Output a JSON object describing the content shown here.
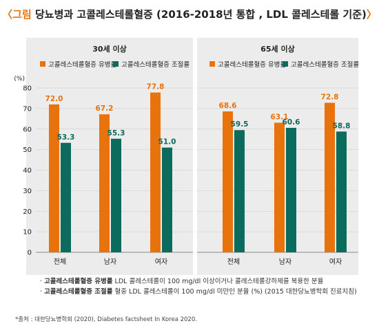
{
  "title": {
    "bracket_open": "〈",
    "tag": "그림",
    "text": " 당뇨병과 고콜레스테롤혈증 (2016-2018년 통합 , LDL 콜레스테롤 기준)",
    "bracket_close": "〉"
  },
  "colors": {
    "orange": "#e8720c",
    "green": "#0b6b5c",
    "panel": "#ececec"
  },
  "y_unit": "(%)",
  "legend": [
    {
      "label": "고콜레스테롤혈증 유병률",
      "color": "#e8720c"
    },
    {
      "label": "고콜레스테롤혈증 조절률",
      "color": "#0b6b5c"
    }
  ],
  "chart_data": [
    {
      "type": "bar",
      "title": "30세 이상",
      "categories": [
        "전체",
        "남자",
        "여자"
      ],
      "series": [
        {
          "name": "고콜레스테롤혈증 유병률",
          "values": [
            72.0,
            67.2,
            77.8
          ]
        },
        {
          "name": "고콜레스테롤혈증 조절률",
          "values": [
            53.3,
            55.3,
            51.0
          ]
        }
      ],
      "ylim": [
        0,
        80
      ],
      "yticks": [
        0,
        10,
        20,
        30,
        40,
        50,
        60,
        70,
        80
      ],
      "legend_position": "top"
    },
    {
      "type": "bar",
      "title": "65세 이상",
      "categories": [
        "전체",
        "남자",
        "여자"
      ],
      "series": [
        {
          "name": "고콜레스테롤혈증 유병률",
          "values": [
            68.6,
            63.1,
            72.8
          ]
        },
        {
          "name": "고콜레스테롤혈증 조절률",
          "values": [
            59.5,
            60.6,
            58.8
          ]
        }
      ],
      "ylim": [
        0,
        80
      ],
      "legend_position": "top"
    }
  ],
  "notes": [
    {
      "bullet": "·",
      "bold": "고콜레스테롤혈증 유병률",
      "text": " LDL 콜레스테롤이 100 mg/dl 이상이거나 콜레스테롤강하제를 복용한 분율"
    },
    {
      "bullet": "·",
      "bold": "고콜레스테롤혈증 조절률",
      "text": " 혈중 LDL 콜레스테롤이 100 mg/dl 미만인 분율 (%) (2015 대한당뇨병학회 진료지침)"
    }
  ],
  "source": "*출처 : 대한당뇨병학회 (2020), Diabetes factsheet In Korea 2020."
}
